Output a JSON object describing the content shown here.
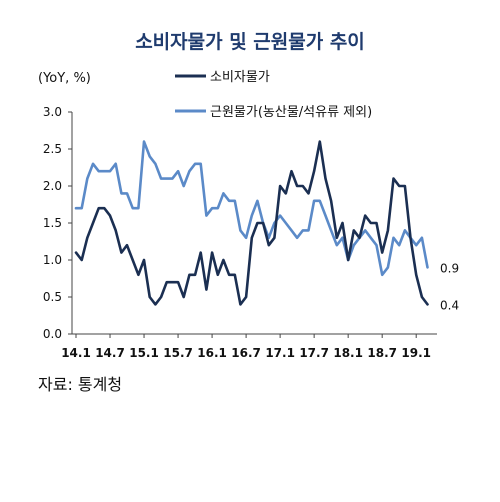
{
  "chart_data": {
    "type": "line",
    "title": "소비자물가 및 근원물가 추이",
    "unit_label": "(YoY, %)",
    "ylim": [
      0.0,
      3.0
    ],
    "y_ticks": [
      "0.0",
      "0.5",
      "1.0",
      "1.5",
      "2.0",
      "2.5",
      "3.0"
    ],
    "x_start": "2014-01",
    "x_ticks": [
      "14.1",
      "14.7",
      "15.1",
      "15.7",
      "16.1",
      "16.7",
      "17.1",
      "17.7",
      "18.1",
      "18.7",
      "19.1"
    ],
    "grid": false,
    "legend_position": "top",
    "series": [
      {
        "name": "소비자물가",
        "color": "#1b2f52",
        "end_label": "0.4",
        "values": [
          1.1,
          1.0,
          1.3,
          1.5,
          1.7,
          1.7,
          1.6,
          1.4,
          1.1,
          1.2,
          1.0,
          0.8,
          1.0,
          0.5,
          0.4,
          0.5,
          0.7,
          0.7,
          0.7,
          0.5,
          0.8,
          0.8,
          1.1,
          0.6,
          1.1,
          0.8,
          1.0,
          0.8,
          0.8,
          0.4,
          0.5,
          1.3,
          1.5,
          1.5,
          1.2,
          1.3,
          2.0,
          1.9,
          2.2,
          2.0,
          2.0,
          1.9,
          2.2,
          2.6,
          2.1,
          1.8,
          1.3,
          1.5,
          1.0,
          1.4,
          1.3,
          1.6,
          1.5,
          1.5,
          1.1,
          1.4,
          2.1,
          2.0,
          2.0,
          1.3,
          0.8,
          0.5,
          0.4
        ],
        "y_override": null
      },
      {
        "name": "근원물가(농산물/석유류 제외)",
        "color": "#5b8ac8",
        "end_label": "0.9",
        "values": [
          1.7,
          1.7,
          2.1,
          2.3,
          2.2,
          2.2,
          2.2,
          2.3,
          1.9,
          1.9,
          1.7,
          1.7,
          2.6,
          2.4,
          2.3,
          2.1,
          2.1,
          2.1,
          2.2,
          2.0,
          2.2,
          2.3,
          2.3,
          1.6,
          1.7,
          1.7,
          1.9,
          1.8,
          1.8,
          1.4,
          1.3,
          1.6,
          1.8,
          1.5,
          1.3,
          1.5,
          1.6,
          1.5,
          1.4,
          1.3,
          1.4,
          1.4,
          1.8,
          1.8,
          1.6,
          1.4,
          1.2,
          1.3,
          1.0,
          1.2,
          1.3,
          1.4,
          1.3,
          1.2,
          0.8,
          0.9,
          1.3,
          1.2,
          1.4,
          1.3,
          1.2,
          1.3,
          0.9
        ]
      }
    ]
  },
  "source": "자료: 통계청"
}
